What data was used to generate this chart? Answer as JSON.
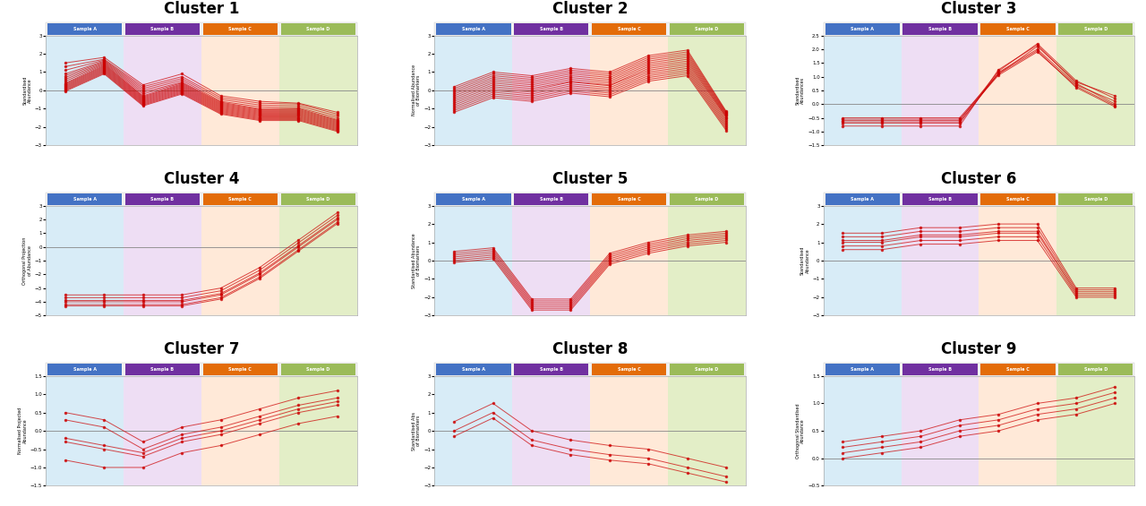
{
  "clusters": [
    {
      "title": "Cluster 1",
      "ylim": [
        -3,
        3
      ],
      "yticks": [
        -3,
        -2,
        -1,
        0,
        1,
        2,
        3
      ],
      "ylabel": "Standardised\nAbundance",
      "lines": [
        [
          1.5,
          1.8,
          0.3,
          0.9,
          -0.3,
          -0.6,
          -0.7,
          -1.2
        ],
        [
          1.3,
          1.7,
          0.2,
          0.75,
          -0.4,
          -0.7,
          -0.75,
          -1.3
        ],
        [
          1.1,
          1.65,
          0.1,
          0.65,
          -0.5,
          -0.8,
          -0.85,
          -1.4
        ],
        [
          0.9,
          1.6,
          0.0,
          0.55,
          -0.6,
          -0.9,
          -0.95,
          -1.5
        ],
        [
          0.8,
          1.55,
          -0.1,
          0.45,
          -0.65,
          -1.0,
          -1.0,
          -1.6
        ],
        [
          0.7,
          1.5,
          -0.2,
          0.4,
          -0.7,
          -1.05,
          -1.05,
          -1.65
        ],
        [
          0.6,
          1.45,
          -0.3,
          0.35,
          -0.75,
          -1.1,
          -1.1,
          -1.7
        ],
        [
          0.5,
          1.4,
          -0.35,
          0.3,
          -0.8,
          -1.15,
          -1.15,
          -1.75
        ],
        [
          0.4,
          1.35,
          -0.4,
          0.25,
          -0.85,
          -1.2,
          -1.2,
          -1.8
        ],
        [
          0.35,
          1.3,
          -0.45,
          0.2,
          -0.9,
          -1.25,
          -1.25,
          -1.85
        ],
        [
          0.3,
          1.25,
          -0.5,
          0.15,
          -0.95,
          -1.3,
          -1.3,
          -1.9
        ],
        [
          0.25,
          1.2,
          -0.55,
          0.1,
          -1.0,
          -1.35,
          -1.35,
          -1.95
        ],
        [
          0.2,
          1.15,
          -0.6,
          0.05,
          -1.05,
          -1.4,
          -1.4,
          -2.0
        ],
        [
          0.15,
          1.1,
          -0.65,
          0.0,
          -1.1,
          -1.45,
          -1.45,
          -2.05
        ],
        [
          0.1,
          1.05,
          -0.7,
          -0.05,
          -1.15,
          -1.5,
          -1.5,
          -2.1
        ],
        [
          0.05,
          1.0,
          -0.75,
          -0.1,
          -1.2,
          -1.55,
          -1.55,
          -2.15
        ],
        [
          0.0,
          0.95,
          -0.8,
          -0.15,
          -1.25,
          -1.6,
          -1.6,
          -2.2
        ],
        [
          -0.05,
          0.9,
          -0.85,
          -0.2,
          -1.3,
          -1.65,
          -1.65,
          -2.25
        ]
      ]
    },
    {
      "title": "Cluster 2",
      "ylim": [
        -3,
        3
      ],
      "yticks": [
        -3,
        -2,
        -1,
        0,
        1,
        2,
        3
      ],
      "ylabel": "Normalised Abundance\nof Biomarkers",
      "lines": [
        [
          -0.5,
          0.3,
          0.1,
          0.5,
          0.3,
          1.2,
          1.5,
          -1.5
        ],
        [
          -0.6,
          0.2,
          0.0,
          0.45,
          0.25,
          1.1,
          1.4,
          -1.6
        ],
        [
          -0.4,
          0.4,
          0.2,
          0.6,
          0.4,
          1.3,
          1.6,
          -1.45
        ],
        [
          -0.7,
          0.1,
          -0.1,
          0.35,
          0.15,
          1.0,
          1.3,
          -1.7
        ],
        [
          -0.3,
          0.5,
          0.3,
          0.7,
          0.5,
          1.4,
          1.7,
          -1.4
        ],
        [
          -0.8,
          0.0,
          -0.2,
          0.25,
          0.05,
          0.9,
          1.2,
          -1.8
        ],
        [
          -0.2,
          0.6,
          0.4,
          0.8,
          0.6,
          1.5,
          1.8,
          -1.35
        ],
        [
          -0.9,
          -0.1,
          -0.3,
          0.15,
          -0.05,
          0.8,
          1.1,
          -1.9
        ],
        [
          -0.1,
          0.7,
          0.5,
          0.9,
          0.7,
          1.6,
          1.9,
          -1.3
        ],
        [
          -1.0,
          -0.2,
          -0.4,
          0.05,
          -0.15,
          0.7,
          1.0,
          -2.0
        ],
        [
          0.0,
          0.8,
          0.6,
          1.0,
          0.8,
          1.7,
          2.0,
          -1.25
        ],
        [
          -1.1,
          -0.3,
          -0.5,
          -0.05,
          -0.25,
          0.6,
          0.9,
          -2.1
        ],
        [
          0.1,
          0.9,
          0.7,
          1.1,
          0.9,
          1.8,
          2.1,
          -1.2
        ],
        [
          -1.2,
          -0.4,
          -0.6,
          -0.15,
          -0.35,
          0.5,
          0.8,
          -2.2
        ],
        [
          0.2,
          1.0,
          0.8,
          1.2,
          1.0,
          1.9,
          2.2,
          -1.15
        ]
      ]
    },
    {
      "title": "Cluster 3",
      "ylim": [
        -1.5,
        2.5
      ],
      "yticks": [
        -1.5,
        -1.0,
        -0.5,
        0.0,
        0.5,
        1.0,
        1.5,
        2.0,
        2.5
      ],
      "ylabel": "Standardised\nAbundances",
      "lines": [
        [
          -0.5,
          -0.5,
          -0.5,
          -0.5,
          1.1,
          2.1,
          0.8,
          0.3
        ],
        [
          -0.6,
          -0.6,
          -0.6,
          -0.6,
          1.2,
          2.2,
          0.85,
          0.2
        ],
        [
          -0.7,
          -0.7,
          -0.7,
          -0.7,
          1.15,
          2.0,
          0.7,
          0.1
        ],
        [
          -0.8,
          -0.8,
          -0.8,
          -0.8,
          1.25,
          2.15,
          0.75,
          0.0
        ],
        [
          -0.55,
          -0.55,
          -0.55,
          -0.55,
          1.05,
          1.9,
          0.65,
          -0.05
        ],
        [
          -0.65,
          -0.65,
          -0.65,
          -0.65,
          1.1,
          1.95,
          0.6,
          -0.1
        ]
      ]
    },
    {
      "title": "Cluster 4",
      "ylim": [
        -5,
        3
      ],
      "yticks": [
        -5,
        -4,
        -3,
        -2,
        -1,
        0,
        1,
        2,
        3
      ],
      "ylabel": "Orthogonal Projection\nof Abundance",
      "lines": [
        [
          -3.5,
          -3.5,
          -3.5,
          -3.5,
          -3.0,
          -1.5,
          0.5,
          2.5
        ],
        [
          -3.7,
          -3.7,
          -3.7,
          -3.7,
          -3.2,
          -1.7,
          0.3,
          2.3
        ],
        [
          -3.9,
          -3.9,
          -3.9,
          -3.9,
          -3.4,
          -1.9,
          0.1,
          2.1
        ],
        [
          -4.0,
          -4.0,
          -4.0,
          -4.0,
          -3.5,
          -2.0,
          0.0,
          2.0
        ],
        [
          -4.2,
          -4.2,
          -4.2,
          -4.2,
          -3.7,
          -2.2,
          -0.2,
          1.8
        ],
        [
          -4.3,
          -4.3,
          -4.3,
          -4.3,
          -3.8,
          -2.3,
          -0.3,
          1.7
        ]
      ]
    },
    {
      "title": "Cluster 5",
      "ylim": [
        -3,
        3
      ],
      "yticks": [
        -3,
        -2,
        -1,
        0,
        1,
        2,
        3
      ],
      "ylabel": "Standardised Abundance\nof Biomarkers",
      "lines": [
        [
          0.3,
          0.5,
          -2.3,
          -2.3,
          0.2,
          0.8,
          1.2,
          1.4
        ],
        [
          0.2,
          0.4,
          -2.4,
          -2.4,
          0.1,
          0.7,
          1.1,
          1.3
        ],
        [
          0.1,
          0.3,
          -2.5,
          -2.5,
          0.0,
          0.6,
          1.0,
          1.2
        ],
        [
          0.0,
          0.2,
          -2.6,
          -2.6,
          -0.1,
          0.5,
          0.9,
          1.1
        ],
        [
          -0.1,
          0.1,
          -2.7,
          -2.7,
          -0.2,
          0.4,
          0.8,
          1.0
        ],
        [
          0.4,
          0.6,
          -2.2,
          -2.2,
          0.3,
          0.9,
          1.3,
          1.5
        ],
        [
          0.5,
          0.7,
          -2.1,
          -2.1,
          0.4,
          1.0,
          1.4,
          1.6
        ]
      ]
    },
    {
      "title": "Cluster 6",
      "ylim": [
        -3,
        3
      ],
      "yticks": [
        -3,
        -2,
        -1,
        0,
        1,
        2,
        3
      ],
      "ylabel": "Standardised\nAbundance",
      "lines": [
        [
          1.5,
          1.5,
          1.8,
          1.8,
          2.0,
          2.0,
          -1.5,
          -1.5
        ],
        [
          1.3,
          1.3,
          1.6,
          1.6,
          1.8,
          1.8,
          -1.6,
          -1.6
        ],
        [
          1.1,
          1.1,
          1.4,
          1.4,
          1.6,
          1.6,
          -1.7,
          -1.7
        ],
        [
          1.0,
          1.0,
          1.3,
          1.3,
          1.5,
          1.5,
          -1.8,
          -1.8
        ],
        [
          0.8,
          0.8,
          1.1,
          1.1,
          1.3,
          1.3,
          -1.9,
          -1.9
        ],
        [
          0.6,
          0.6,
          0.9,
          0.9,
          1.1,
          1.1,
          -2.0,
          -2.0
        ]
      ]
    },
    {
      "title": "Cluster 7",
      "ylim": [
        -1.5,
        1.5
      ],
      "yticks": [
        -1.5,
        -1.0,
        -0.5,
        0.0,
        0.5,
        1.0,
        1.5
      ],
      "ylabel": "Normalised Projected\nAbundance",
      "lines": [
        [
          0.5,
          0.3,
          -0.3,
          0.1,
          0.3,
          0.6,
          0.9,
          1.1
        ],
        [
          0.3,
          0.1,
          -0.5,
          -0.1,
          0.1,
          0.4,
          0.7,
          0.9
        ],
        [
          -0.3,
          -0.5,
          -0.7,
          -0.3,
          -0.1,
          0.2,
          0.5,
          0.7
        ],
        [
          -0.8,
          -1.0,
          -1.0,
          -0.6,
          -0.4,
          -0.1,
          0.2,
          0.4
        ],
        [
          -0.2,
          -0.4,
          -0.6,
          -0.2,
          0.0,
          0.3,
          0.6,
          0.8
        ]
      ]
    },
    {
      "title": "Cluster 8",
      "ylim": [
        -3,
        3
      ],
      "yticks": [
        -3,
        -2,
        -1,
        0,
        1,
        2,
        3
      ],
      "ylabel": "Standardised Abs\nof Biomarkers",
      "lines": [
        [
          0.5,
          1.5,
          0.0,
          -0.5,
          -0.8,
          -1.0,
          -1.5,
          -2.0
        ],
        [
          0.0,
          1.0,
          -0.5,
          -1.0,
          -1.3,
          -1.5,
          -2.0,
          -2.5
        ],
        [
          -0.3,
          0.7,
          -0.8,
          -1.3,
          -1.6,
          -1.8,
          -2.3,
          -2.8
        ]
      ]
    },
    {
      "title": "Cluster 9",
      "ylim": [
        -0.5,
        1.5
      ],
      "yticks": [
        -0.5,
        0.0,
        0.5,
        1.0,
        1.5
      ],
      "ylabel": "Orthogonal Standardised\nAbundance",
      "lines": [
        [
          0.3,
          0.4,
          0.5,
          0.7,
          0.8,
          1.0,
          1.1,
          1.3
        ],
        [
          0.2,
          0.3,
          0.4,
          0.6,
          0.7,
          0.9,
          1.0,
          1.2
        ],
        [
          0.1,
          0.2,
          0.3,
          0.5,
          0.6,
          0.8,
          0.9,
          1.1
        ],
        [
          0.0,
          0.1,
          0.2,
          0.4,
          0.5,
          0.7,
          0.8,
          1.0
        ]
      ]
    }
  ],
  "group_labels": [
    "Sample A",
    "Sample B",
    "Sample C",
    "Sample D"
  ],
  "group_header_colors": [
    "#4472C4",
    "#7030A0",
    "#E36C09",
    "#9BBB59"
  ],
  "group_bg_colors": [
    "#C8E4F5",
    "#E8D0F0",
    "#FFE0C8",
    "#D8E8B0"
  ],
  "line_color": "#CC0000",
  "line_alpha": 0.7,
  "marker": "o",
  "marker_size": 1.5,
  "line_width": 0.7,
  "background_color": "#FFFFFF",
  "hline_color": "#888888",
  "hline_lw": 0.6,
  "title_fontsize": 12,
  "ylabel_fontsize": 3.5,
  "tick_fontsize": 4,
  "header_label_fontsize": 3.5
}
